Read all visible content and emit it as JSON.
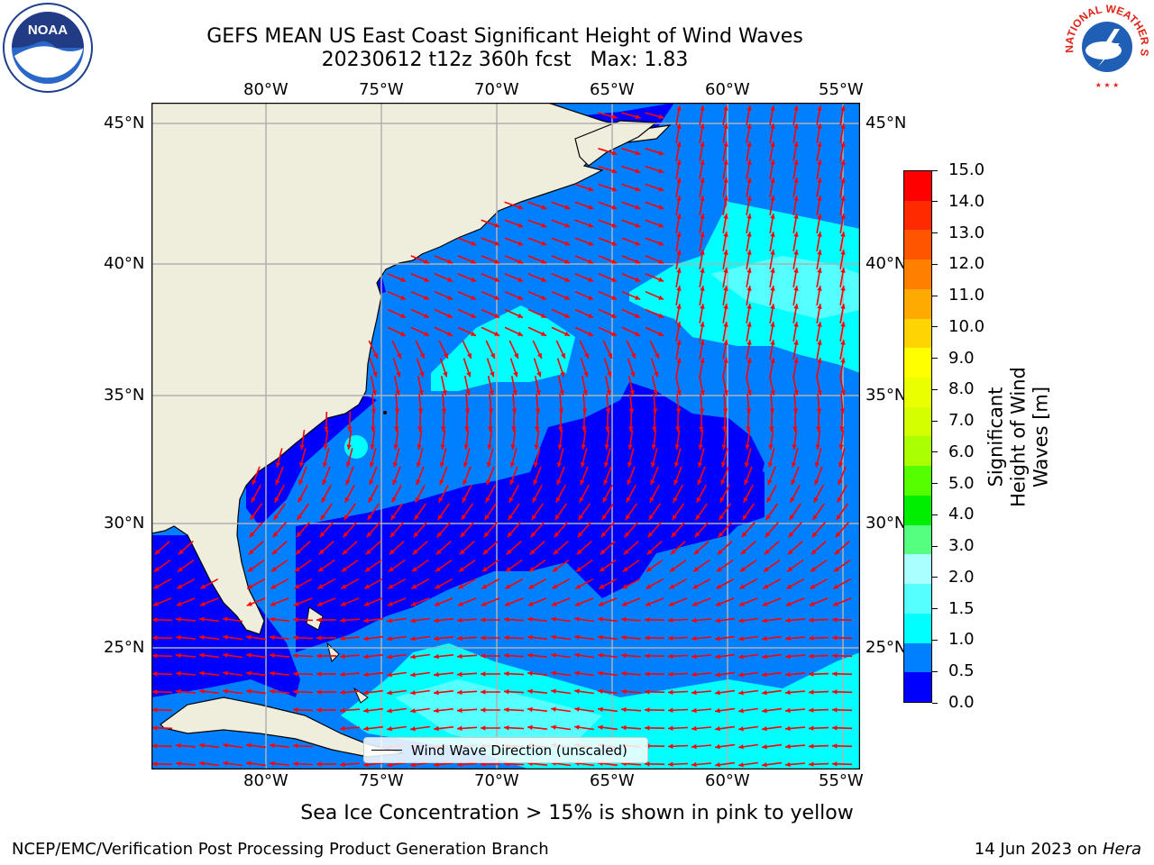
{
  "title": {
    "line1": "GEFS MEAN US East Coast Significant Height of Wind Waves",
    "line2": "20230612 t12z 360h fcst   Max: 1.83"
  },
  "map": {
    "lon_ticks": [
      "80°W",
      "75°W",
      "70°W",
      "65°W",
      "60°W",
      "55°W"
    ],
    "lat_ticks": [
      "45°N",
      "40°N",
      "35°N",
      "30°N",
      "25°N"
    ],
    "legend_label": "Wind Wave Direction (unscaled)"
  },
  "colorbar": {
    "label": "Significant Height of Wind Waves [m]",
    "ticks": [
      "15.0",
      "14.0",
      "13.0",
      "12.0",
      "11.0",
      "10.0",
      "9.0",
      "8.0",
      "7.0",
      "6.0",
      "5.0",
      "4.0",
      "3.0",
      "2.0",
      "1.5",
      "1.0",
      "0.5",
      "0.0"
    ],
    "colors_top_to_bottom": [
      "#ff0000",
      "#ff2a00",
      "#ff5500",
      "#ff8000",
      "#ffaa00",
      "#ffd400",
      "#ffff00",
      "#eaff00",
      "#d4ff00",
      "#aaff00",
      "#55ff00",
      "#00ee00",
      "#55ff80",
      "#aaffff",
      "#55ffff",
      "#00ffff",
      "#0080ff",
      "#0000ff"
    ],
    "label_line1": "Significant Height of Wind",
    "label_line2": "Waves [m]"
  },
  "colors": {
    "land": "#efeddc",
    "wave_low": "#0000ff",
    "wave_mid": "#0080ff",
    "wave_high": "#00ffff",
    "wave_high2": "#55ffff",
    "arrows": "#ff0000"
  },
  "logos": {
    "noaa": "NOAA",
    "nws_text": "NATIONAL WEATHER SERVICE"
  },
  "footer": {
    "note": "Sea Ice Concentration > 15% is shown in pink to yellow",
    "left": "NCEP/EMC/Verification Post Processing Product Generation Branch",
    "right_date": "14 Jun 2023 on ",
    "right_host": "Hera"
  }
}
